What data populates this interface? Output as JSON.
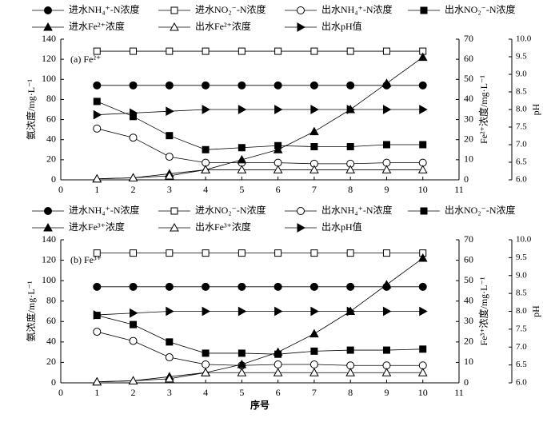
{
  "chart_data": [
    {
      "type": "line",
      "title": "(a) Fe²⁺",
      "ylabel": "氨浓度/mg·L⁻¹",
      "y2label": "Fe²⁺浓度/mg·L⁻¹",
      "y3label": "pH",
      "x": [
        1,
        2,
        3,
        4,
        5,
        6,
        7,
        8,
        9,
        10
      ],
      "xlim": [
        0,
        11
      ],
      "xticks": [
        0,
        1,
        2,
        3,
        4,
        5,
        6,
        7,
        8,
        9,
        10,
        11
      ],
      "ylim": [
        0,
        140
      ],
      "yticks": [
        0,
        20,
        40,
        60,
        80,
        100,
        120,
        140
      ],
      "y2lim": [
        0,
        70
      ],
      "y2ticks": [
        0,
        10,
        20,
        30,
        40,
        50,
        60,
        70
      ],
      "y3lim": [
        6,
        10
      ],
      "y3ticks": [
        {
          "value": 6,
          "label": "6.0"
        },
        6.5,
        {
          "value": 7,
          "label": "7.0"
        },
        7.5,
        {
          "value": 8,
          "label": "8.0"
        },
        8.5,
        {
          "value": 9,
          "label": "9.0"
        },
        9.5,
        {
          "value": 10,
          "label": "10.0"
        }
      ],
      "series": [
        {
          "name": "进水NH₄⁺-N浓度",
          "color": "#000000",
          "marker": "circle",
          "filled": true,
          "values": [
            94,
            94,
            94,
            94,
            94,
            94,
            94,
            94,
            94,
            94
          ]
        },
        {
          "name": "进水NO₂⁻-N浓度",
          "color": "#000000",
          "marker": "square",
          "filled": false,
          "values": [
            128,
            128,
            128,
            128,
            128,
            128,
            128,
            128,
            128,
            128
          ]
        },
        {
          "name": "出水NH₄⁺-N浓度",
          "color": "#000000",
          "marker": "circle",
          "filled": false,
          "values": [
            51,
            42,
            23,
            17,
            17,
            17,
            16,
            16,
            17,
            17
          ]
        },
        {
          "name": "出水NO₂⁻-N浓度",
          "color": "#000000",
          "marker": "square",
          "filled": true,
          "values": [
            78,
            63,
            44,
            30,
            32,
            34,
            33,
            33,
            35,
            35
          ]
        },
        {
          "name": "进水Fe²⁺浓度",
          "color": "#000000",
          "marker": "triangle",
          "filled": true,
          "axis": "y2",
          "values": [
            0.5,
            1,
            3,
            5,
            10,
            15,
            24,
            35,
            48,
            61
          ]
        },
        {
          "name": "出水Fe²⁺浓度",
          "color": "#000000",
          "marker": "triangle",
          "filled": false,
          "axis": "y2",
          "values": [
            0.5,
            1,
            2,
            5,
            5,
            5,
            5,
            5,
            5,
            5
          ]
        },
        {
          "name": "出水pH值",
          "color": "#000000",
          "marker": "triangle-right",
          "filled": true,
          "axis": "y3",
          "values": [
            7.85,
            7.9,
            7.95,
            8.0,
            8.0,
            8.0,
            8.0,
            8.0,
            8.0,
            8.0
          ]
        }
      ]
    },
    {
      "type": "line",
      "title": "(b) Fe³⁺",
      "xlabel": "序号",
      "ylabel": "氨浓度/mg·L⁻¹",
      "y2label": "Fe³⁺浓度/mg·L⁻¹",
      "y3label": "pH",
      "x": [
        1,
        2,
        3,
        4,
        5,
        6,
        7,
        8,
        9,
        10
      ],
      "xlim": [
        0,
        11
      ],
      "xticks": [
        0,
        1,
        2,
        3,
        4,
        5,
        6,
        7,
        8,
        9,
        10,
        11
      ],
      "ylim": [
        0,
        140
      ],
      "yticks": [
        0,
        20,
        40,
        60,
        80,
        100,
        120,
        140
      ],
      "y2lim": [
        0,
        70
      ],
      "y2ticks": [
        0,
        10,
        20,
        30,
        40,
        50,
        60,
        70
      ],
      "y3lim": [
        6,
        10
      ],
      "y3ticks": [
        {
          "value": 6,
          "label": "6.0"
        },
        6.5,
        {
          "value": 7,
          "label": "7.0"
        },
        7.5,
        {
          "value": 8,
          "label": "8.0"
        },
        8.5,
        {
          "value": 9,
          "label": "9.0"
        },
        9.5,
        {
          "value": 10,
          "label": "10.0"
        }
      ],
      "series": [
        {
          "name": "进水NH₄⁺-N浓度",
          "color": "#000000",
          "marker": "circle",
          "filled": true,
          "values": [
            94,
            94,
            94,
            94,
            94,
            94,
            94,
            94,
            94,
            94
          ]
        },
        {
          "name": "进水NO₂⁻-N浓度",
          "color": "#000000",
          "marker": "square",
          "filled": false,
          "values": [
            127,
            127,
            127,
            127,
            127,
            127,
            127,
            127,
            127,
            127
          ]
        },
        {
          "name": "出水NH₄⁺-N浓度",
          "color": "#000000",
          "marker": "circle",
          "filled": false,
          "values": [
            50,
            41,
            25,
            18,
            17,
            18,
            18,
            17,
            17,
            17
          ]
        },
        {
          "name": "出水NO₂⁻-N浓度",
          "color": "#000000",
          "marker": "square",
          "filled": true,
          "values": [
            66,
            57,
            40,
            29,
            29,
            28,
            31,
            32,
            32,
            33
          ]
        },
        {
          "name": "进水Fe³⁺浓度",
          "color": "#000000",
          "marker": "triangle",
          "filled": true,
          "axis": "y2",
          "values": [
            0.5,
            1,
            3,
            5,
            9,
            15,
            24,
            35,
            48,
            61
          ]
        },
        {
          "name": "出水Fe³⁺浓度",
          "color": "#000000",
          "marker": "triangle",
          "filled": false,
          "axis": "y2",
          "values": [
            0.5,
            1,
            2,
            5,
            5,
            5,
            5,
            5,
            5,
            5
          ]
        },
        {
          "name": "出水pH值",
          "color": "#000000",
          "marker": "triangle-right",
          "filled": true,
          "axis": "y3",
          "values": [
            7.9,
            7.95,
            8.0,
            8.0,
            8.0,
            8.0,
            8.0,
            8.0,
            8.0,
            8.0
          ]
        }
      ]
    }
  ]
}
